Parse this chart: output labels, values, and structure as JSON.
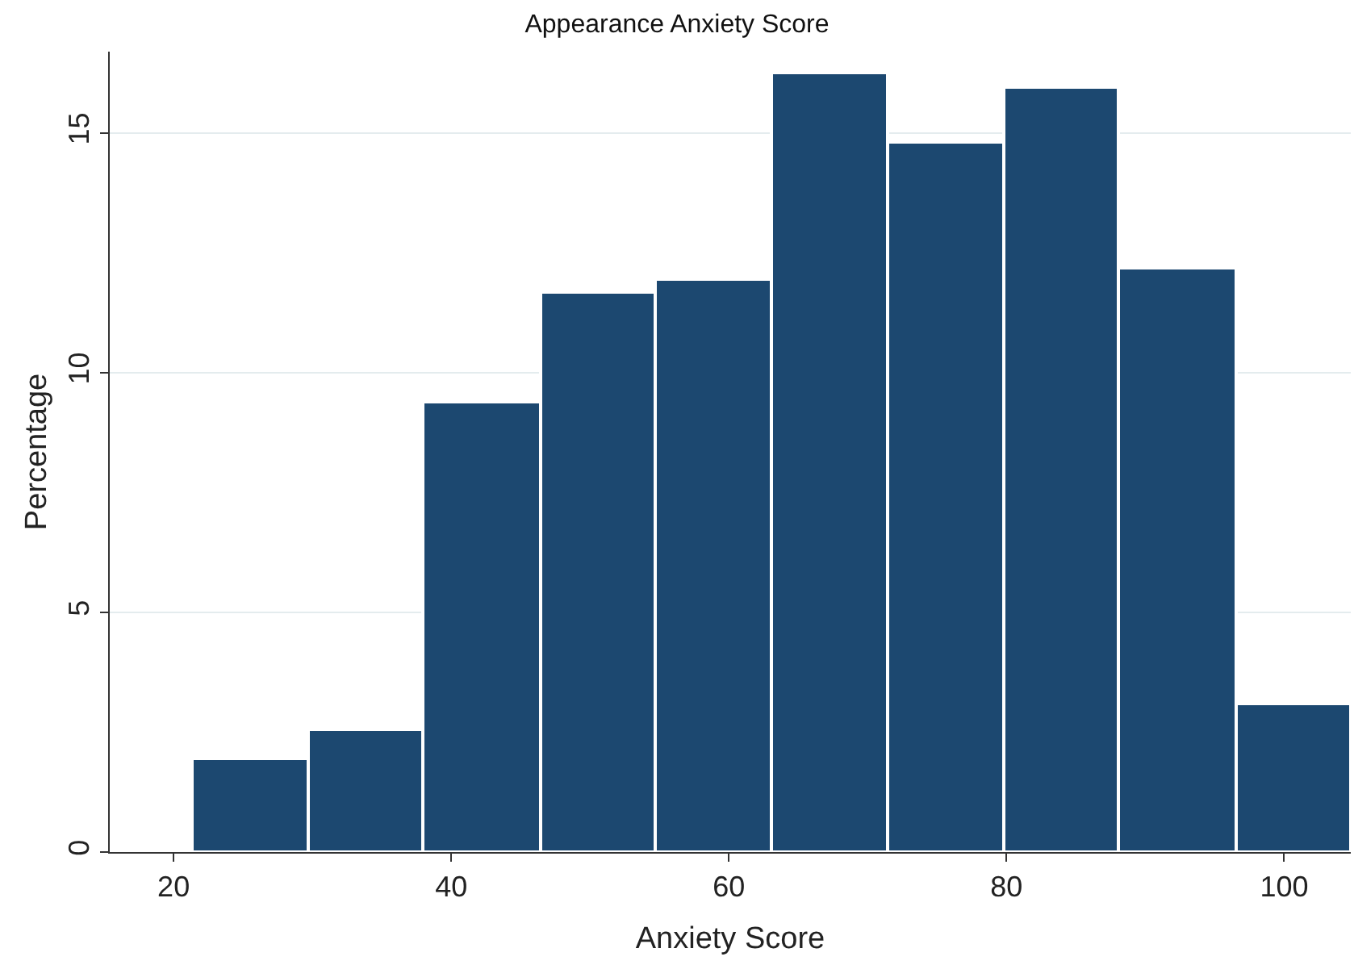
{
  "chart_data": {
    "type": "histogram",
    "title": "Appearance Anxiety Score",
    "xlabel": "Anxiety Score",
    "ylabel": "Percentage",
    "bins": [
      21.3,
      29.7,
      38.0,
      46.4,
      54.7,
      63.1,
      71.4,
      79.8,
      88.1,
      96.5,
      104.8
    ],
    "values": [
      1.95,
      2.55,
      9.4,
      11.7,
      11.95,
      16.25,
      14.8,
      15.95,
      12.2,
      3.1
    ],
    "color": "#1c4870",
    "xlim": [
      15.4,
      104.8
    ],
    "xticks": [
      20,
      40,
      60,
      80,
      100
    ],
    "ylim": [
      0,
      16.7
    ],
    "yticks": [
      0,
      5,
      10,
      15
    ],
    "grid": "y"
  }
}
